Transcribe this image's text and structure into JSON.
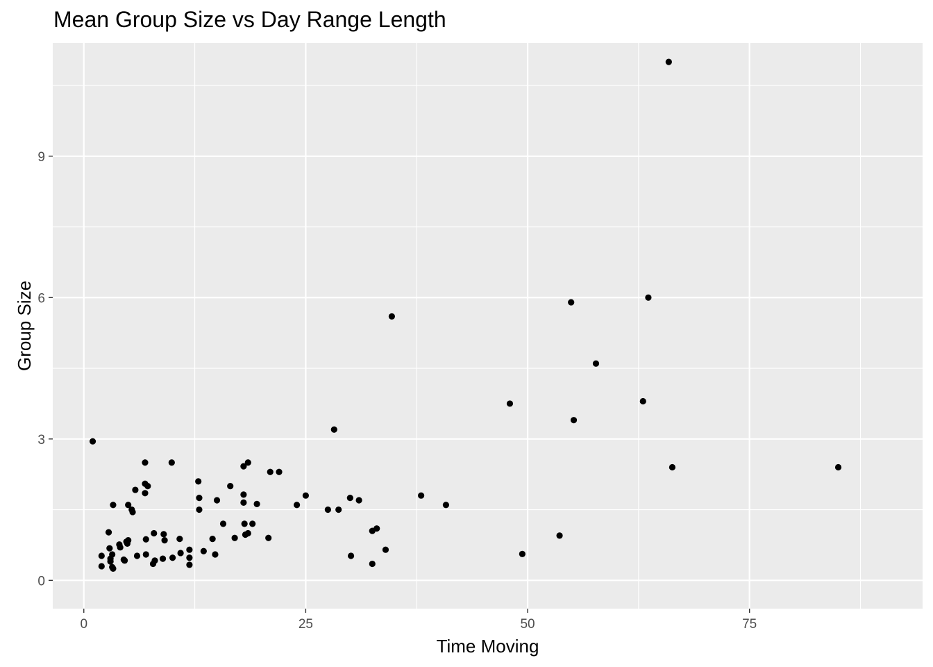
{
  "chart_data": {
    "type": "scatter",
    "title": "Mean Group Size vs Day Range Length",
    "xlabel": "Time Moving",
    "ylabel": "Group Size",
    "xlim": [
      -3.5,
      94.5
    ],
    "ylim": [
      -0.6,
      11.4
    ],
    "xticks": [
      0,
      25,
      50,
      75
    ],
    "xtick_labels": [
      "0",
      "25",
      "50",
      "75"
    ],
    "yticks": [
      0,
      3,
      6,
      9
    ],
    "ytick_labels": [
      "0",
      "3",
      "6",
      "9"
    ],
    "x_minor": [
      12.5,
      37.5,
      62.5,
      87.5
    ],
    "y_minor": [
      1.5,
      4.5,
      7.5,
      10.5
    ],
    "grid": true,
    "legend": "none",
    "colors": {
      "panel": "#ebebeb",
      "grid": "#ffffff",
      "point": "#000000"
    },
    "points": [
      [
        1.0,
        2.95
      ],
      [
        2.0,
        0.52
      ],
      [
        2.0,
        0.3
      ],
      [
        2.8,
        1.02
      ],
      [
        2.9,
        0.68
      ],
      [
        3.0,
        0.46
      ],
      [
        3.0,
        0.4
      ],
      [
        3.2,
        0.55
      ],
      [
        3.2,
        0.28
      ],
      [
        3.3,
        0.25
      ],
      [
        3.3,
        1.6
      ],
      [
        4.0,
        0.76
      ],
      [
        4.1,
        0.7
      ],
      [
        4.5,
        0.44
      ],
      [
        4.6,
        0.42
      ],
      [
        4.8,
        0.82
      ],
      [
        4.9,
        0.78
      ],
      [
        5.0,
        0.85
      ],
      [
        5.0,
        1.6
      ],
      [
        5.4,
        1.5
      ],
      [
        5.5,
        1.45
      ],
      [
        5.8,
        1.92
      ],
      [
        6.0,
        0.52
      ],
      [
        6.9,
        2.5
      ],
      [
        6.9,
        1.85
      ],
      [
        6.9,
        2.05
      ],
      [
        7.0,
        0.55
      ],
      [
        7.0,
        0.87
      ],
      [
        7.2,
        2.0
      ],
      [
        7.8,
        0.35
      ],
      [
        7.9,
        1.0
      ],
      [
        8.0,
        0.42
      ],
      [
        8.9,
        0.46
      ],
      [
        9.0,
        0.98
      ],
      [
        9.1,
        0.85
      ],
      [
        9.9,
        2.5
      ],
      [
        10.0,
        0.48
      ],
      [
        10.8,
        0.88
      ],
      [
        10.9,
        0.58
      ],
      [
        11.9,
        0.65
      ],
      [
        11.9,
        0.48
      ],
      [
        11.9,
        0.33
      ],
      [
        12.9,
        2.1
      ],
      [
        13.0,
        1.5
      ],
      [
        13.0,
        1.75
      ],
      [
        13.5,
        0.62
      ],
      [
        14.5,
        0.88
      ],
      [
        14.8,
        0.55
      ],
      [
        15.0,
        1.7
      ],
      [
        15.7,
        1.2
      ],
      [
        16.5,
        2.0
      ],
      [
        17.0,
        0.9
      ],
      [
        18.0,
        1.65
      ],
      [
        18.0,
        1.82
      ],
      [
        18.0,
        2.42
      ],
      [
        18.1,
        1.2
      ],
      [
        18.2,
        0.97
      ],
      [
        18.5,
        2.5
      ],
      [
        18.5,
        1.0
      ],
      [
        19.0,
        1.2
      ],
      [
        19.5,
        1.62
      ],
      [
        20.8,
        0.9
      ],
      [
        21.0,
        2.3
      ],
      [
        22.0,
        2.3
      ],
      [
        24.0,
        1.6
      ],
      [
        25.0,
        1.8
      ],
      [
        27.5,
        1.5
      ],
      [
        28.2,
        3.2
      ],
      [
        28.7,
        1.5
      ],
      [
        30.0,
        1.75
      ],
      [
        30.1,
        0.52
      ],
      [
        31.0,
        1.7
      ],
      [
        32.5,
        1.05
      ],
      [
        32.5,
        0.35
      ],
      [
        33.0,
        1.1
      ],
      [
        34.0,
        0.65
      ],
      [
        34.7,
        5.6
      ],
      [
        38.0,
        1.8
      ],
      [
        40.8,
        1.6
      ],
      [
        48.0,
        3.75
      ],
      [
        49.4,
        0.56
      ],
      [
        53.6,
        0.95
      ],
      [
        54.9,
        5.9
      ],
      [
        55.2,
        3.4
      ],
      [
        57.7,
        4.6
      ],
      [
        63.0,
        3.8
      ],
      [
        63.6,
        6.0
      ],
      [
        65.9,
        11.0
      ],
      [
        66.3,
        2.4
      ],
      [
        85.0,
        2.4
      ]
    ]
  }
}
